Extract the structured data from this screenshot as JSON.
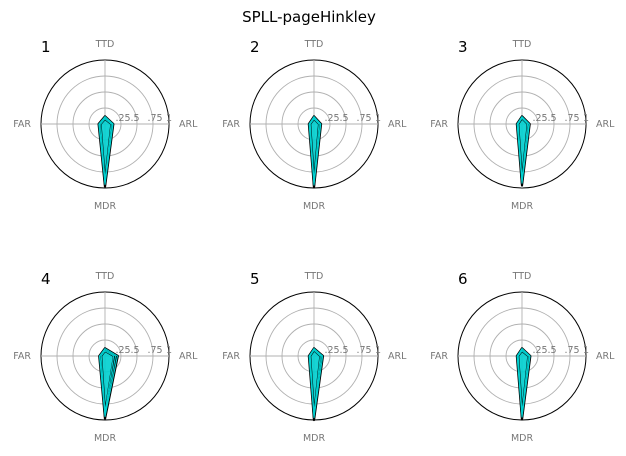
{
  "chart_data": {
    "type": "radar",
    "title": "SPLL-pageHinkley",
    "axes": [
      "TTD",
      "ARL",
      "MDR",
      "FAR"
    ],
    "radial_ticks": [
      ".25",
      ".5",
      ".75",
      "1"
    ],
    "rlim": [
      0,
      1
    ],
    "grid": true,
    "colors": {
      "fill": "#00d0d0",
      "edge": "#000000",
      "grid": "#b0b0b0",
      "outer": "#000000",
      "text": "#777777"
    },
    "panels": [
      {
        "label": "1",
        "series": [
          {
            "values": [
              0.12,
              0.13,
              0.98,
              0.1
            ]
          },
          {
            "values": [
              0.1,
              0.12,
              0.95,
              0.09
            ]
          },
          {
            "values": [
              0.08,
              0.1,
              0.9,
              0.07
            ]
          }
        ]
      },
      {
        "label": "2",
        "series": [
          {
            "values": [
              0.12,
              0.11,
              0.99,
              0.08
            ]
          },
          {
            "values": [
              0.1,
              0.1,
              0.96,
              0.07
            ]
          },
          {
            "values": [
              0.08,
              0.08,
              0.91,
              0.06
            ]
          }
        ]
      },
      {
        "label": "3",
        "series": [
          {
            "values": [
              0.12,
              0.12,
              0.96,
              0.08
            ]
          },
          {
            "values": [
              0.11,
              0.11,
              0.93,
              0.07
            ]
          },
          {
            "values": [
              0.09,
              0.09,
              0.88,
              0.06
            ]
          }
        ]
      },
      {
        "label": "4",
        "series": [
          {
            "values": [
              0.12,
              0.2,
              0.98,
              0.09
            ]
          },
          {
            "values": [
              0.1,
              0.17,
              0.95,
              0.08
            ]
          },
          {
            "values": [
              0.08,
              0.14,
              0.9,
              0.06
            ]
          }
        ]
      },
      {
        "label": "5",
        "series": [
          {
            "values": [
              0.12,
              0.14,
              1.0,
              0.08
            ]
          },
          {
            "values": [
              0.11,
              0.12,
              0.97,
              0.07
            ]
          },
          {
            "values": [
              0.09,
              0.1,
              0.92,
              0.06
            ]
          }
        ]
      },
      {
        "label": "6",
        "series": [
          {
            "values": [
              0.12,
              0.13,
              0.99,
              0.08
            ]
          },
          {
            "values": [
              0.1,
              0.12,
              0.96,
              0.07
            ]
          },
          {
            "values": [
              0.08,
              0.1,
              0.91,
              0.06
            ]
          }
        ]
      }
    ]
  }
}
